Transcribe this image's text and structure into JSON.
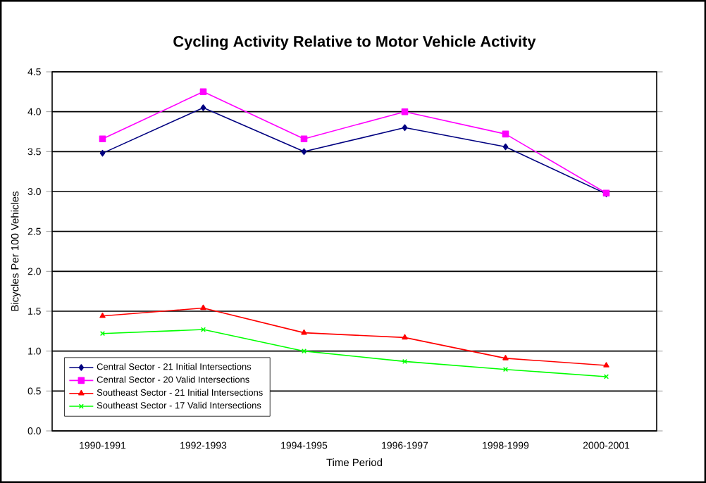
{
  "chart_data": {
    "type": "line",
    "title": "Cycling Activity Relative to Motor Vehicle Activity",
    "xlabel": "Time Period",
    "ylabel": "Bicycles Per 100 Vehicles",
    "categories": [
      "1990-1991",
      "1992-1993",
      "1994-1995",
      "1996-1997",
      "1998-1999",
      "2000-2001"
    ],
    "series": [
      {
        "name": "Central Sector - 21 Initial Intersections",
        "color": "#000080",
        "marker": "diamond",
        "values": [
          3.48,
          4.05,
          3.5,
          3.8,
          3.56,
          2.97
        ]
      },
      {
        "name": "Central Sector - 20 Valid Intersections",
        "color": "#ff00ff",
        "marker": "square",
        "values": [
          3.66,
          4.25,
          3.66,
          4.0,
          3.72,
          2.98
        ]
      },
      {
        "name": "Southeast Sector - 21 Initial Intersections",
        "color": "#ff0000",
        "marker": "triangle",
        "values": [
          1.44,
          1.54,
          1.23,
          1.17,
          0.91,
          0.82
        ]
      },
      {
        "name": "Southeast Sector - 17 Valid Intersections",
        "color": "#00ff00",
        "marker": "cross",
        "values": [
          1.22,
          1.27,
          1.0,
          0.87,
          0.77,
          0.68
        ]
      }
    ],
    "ylim": [
      0,
      4.5
    ],
    "yticks": [
      {
        "value": 0,
        "label": "0.0"
      },
      0.5,
      {
        "value": 1,
        "label": "1.0"
      },
      1.5,
      {
        "value": 2,
        "label": "2.0"
      },
      2.5,
      {
        "value": 3,
        "label": "3.0"
      },
      3.5,
      {
        "value": 4,
        "label": "4.0"
      },
      4.5
    ],
    "grid": "y",
    "legend": "bottom left"
  }
}
